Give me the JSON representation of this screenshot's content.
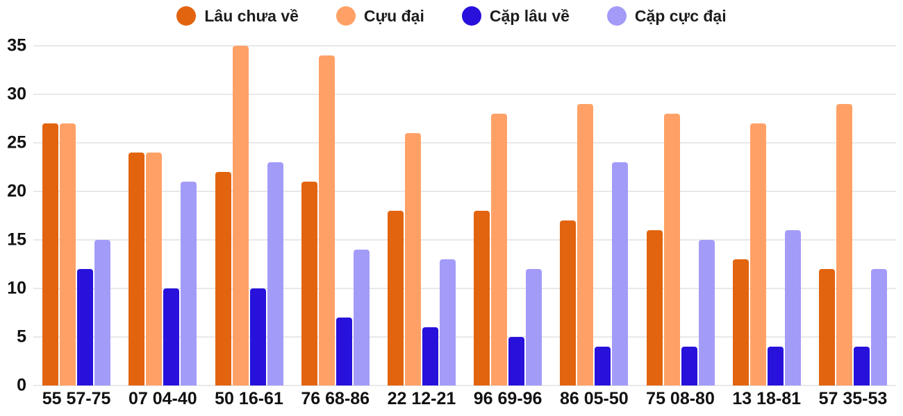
{
  "chart_data": {
    "type": "bar",
    "title": "",
    "xlabel": "",
    "ylabel": "",
    "categories": [
      "55 57-75",
      "07 04-40",
      "50 16-61",
      "76 68-86",
      "22 12-21",
      "96 69-96",
      "86 05-50",
      "75 08-80",
      "13 18-81",
      "57 35-53"
    ],
    "series": [
      {
        "name": "Lâu chưa về",
        "color": "#e2640e",
        "values": [
          27,
          24,
          22,
          21,
          18,
          18,
          17,
          16,
          13,
          12
        ]
      },
      {
        "name": "Cựu đại",
        "color": "#ffa167",
        "values": [
          27,
          24,
          35,
          34,
          26,
          28,
          29,
          28,
          27,
          29
        ]
      },
      {
        "name": "Cặp lâu về",
        "color": "#2711db",
        "values": [
          12,
          10,
          10,
          7,
          6,
          5,
          4,
          4,
          4,
          4
        ]
      },
      {
        "name": "Cặp cực đại",
        "color": "#a39bf8",
        "values": [
          15,
          21,
          23,
          14,
          13,
          12,
          23,
          15,
          16,
          12
        ]
      }
    ],
    "ylim": [
      0,
      35
    ],
    "yticks": [
      0,
      5,
      10,
      15,
      20,
      25,
      30,
      35
    ],
    "grid": "horizontal",
    "legend_position": "top",
    "colors": {
      "grid": "#e8e8e8",
      "text": "#111111",
      "background": "#ffffff"
    }
  }
}
